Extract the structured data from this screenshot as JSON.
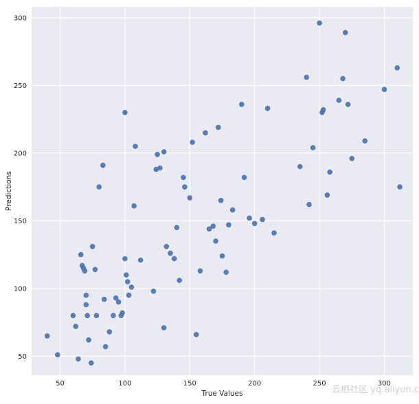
{
  "figure": {
    "watermark": "云栖社区 yq.aliyun.c",
    "background": "#ffffff",
    "plot_background": "#eaeaf2",
    "grid_color": "#ffffff",
    "dot_color": "#4c72b0",
    "tick_color": "#262626"
  },
  "chart_data": {
    "type": "scatter",
    "title": "",
    "xlabel": "True Values",
    "ylabel": "Predictions",
    "xlim": [
      28,
      322
    ],
    "ylim": [
      36,
      308
    ],
    "xticks": [
      50,
      100,
      150,
      200,
      250,
      300
    ],
    "yticks": [
      50,
      100,
      150,
      200,
      250,
      300
    ],
    "grid": true,
    "legend": false,
    "points": [
      [
        40,
        65
      ],
      [
        48,
        51
      ],
      [
        60,
        80
      ],
      [
        62,
        72
      ],
      [
        64,
        48
      ],
      [
        66,
        125
      ],
      [
        67,
        117
      ],
      [
        68,
        115
      ],
      [
        69,
        113
      ],
      [
        70,
        95
      ],
      [
        70,
        88
      ],
      [
        71,
        80
      ],
      [
        72,
        62
      ],
      [
        74,
        45
      ],
      [
        75,
        131
      ],
      [
        77,
        114
      ],
      [
        78,
        80
      ],
      [
        80,
        175
      ],
      [
        83,
        191
      ],
      [
        84,
        92
      ],
      [
        85,
        57
      ],
      [
        88,
        68
      ],
      [
        91,
        80
      ],
      [
        93,
        93
      ],
      [
        95,
        90
      ],
      [
        97,
        80
      ],
      [
        98,
        82
      ],
      [
        100,
        230
      ],
      [
        100,
        122
      ],
      [
        101,
        110
      ],
      [
        102,
        105
      ],
      [
        103,
        95
      ],
      [
        105,
        101
      ],
      [
        107,
        161
      ],
      [
        108,
        205
      ],
      [
        112,
        121
      ],
      [
        122,
        98
      ],
      [
        124,
        188
      ],
      [
        125,
        199
      ],
      [
        127,
        189
      ],
      [
        130,
        201
      ],
      [
        130,
        71
      ],
      [
        132,
        131
      ],
      [
        135,
        126
      ],
      [
        138,
        122
      ],
      [
        140,
        145
      ],
      [
        142,
        106
      ],
      [
        145,
        182
      ],
      [
        146,
        175
      ],
      [
        150,
        167
      ],
      [
        152,
        208
      ],
      [
        155,
        66
      ],
      [
        158,
        113
      ],
      [
        162,
        215
      ],
      [
        165,
        144
      ],
      [
        168,
        146
      ],
      [
        170,
        135
      ],
      [
        172,
        219
      ],
      [
        174,
        165
      ],
      [
        175,
        124
      ],
      [
        178,
        112
      ],
      [
        180,
        147
      ],
      [
        183,
        158
      ],
      [
        190,
        236
      ],
      [
        192,
        182
      ],
      [
        196,
        152
      ],
      [
        200,
        148
      ],
      [
        206,
        151
      ],
      [
        210,
        233
      ],
      [
        215,
        141
      ],
      [
        235,
        190
      ],
      [
        240,
        256
      ],
      [
        242,
        162
      ],
      [
        245,
        204
      ],
      [
        250,
        296
      ],
      [
        252,
        230
      ],
      [
        253,
        232
      ],
      [
        256,
        169
      ],
      [
        258,
        186
      ],
      [
        265,
        239
      ],
      [
        268,
        255
      ],
      [
        270,
        289
      ],
      [
        272,
        236
      ],
      [
        275,
        196
      ],
      [
        285,
        209
      ],
      [
        300,
        247
      ],
      [
        310,
        263
      ],
      [
        312,
        175
      ]
    ]
  }
}
